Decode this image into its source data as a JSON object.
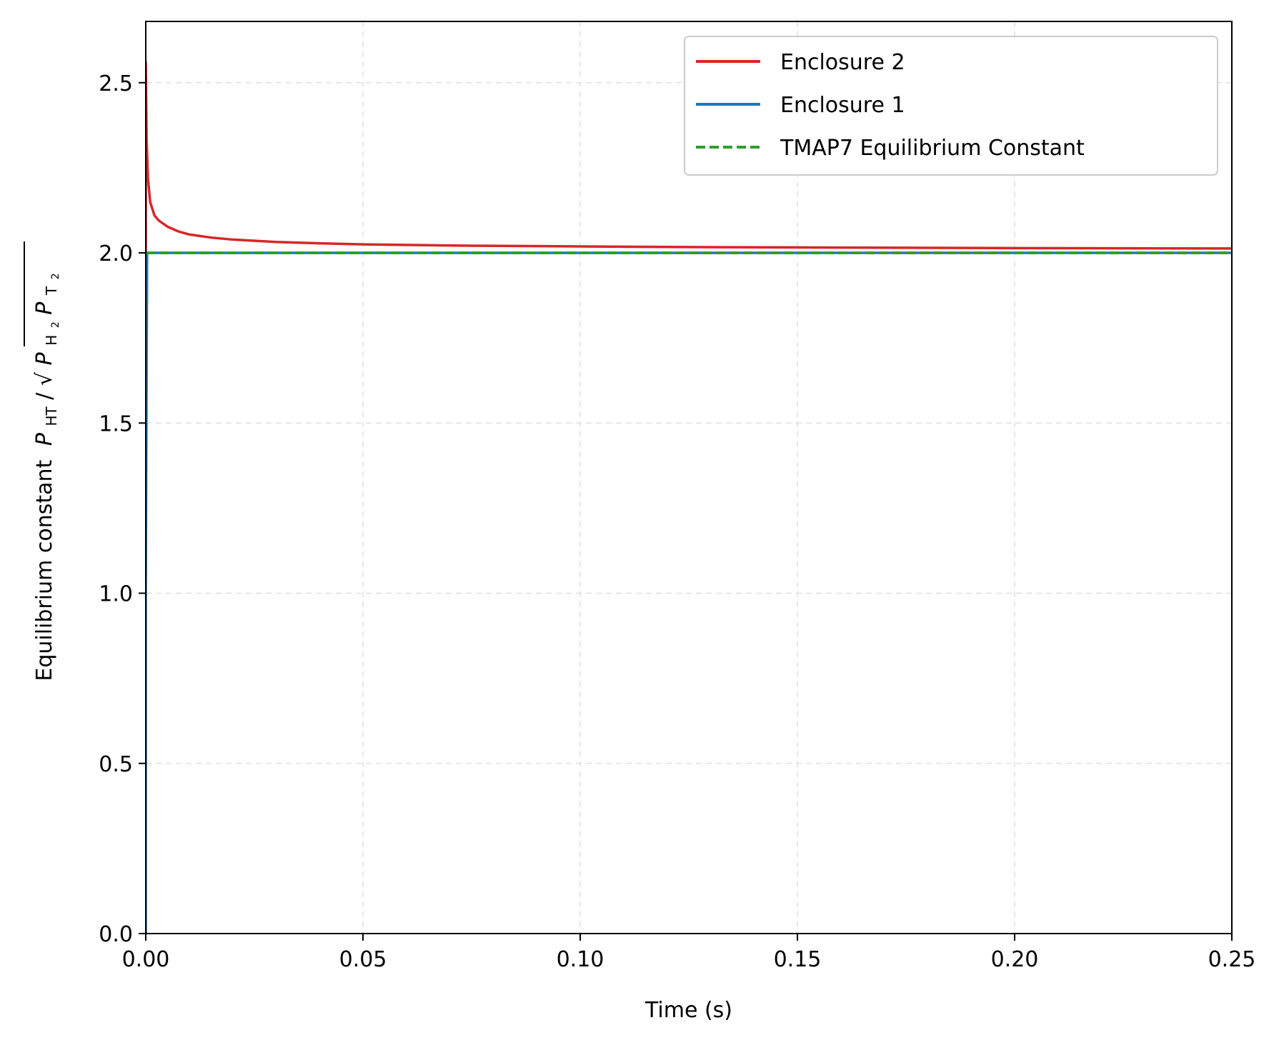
{
  "chart_data": {
    "type": "line",
    "xlabel": "Time (s)",
    "ylabel": "Equilibrium constant",
    "ylabel_math": {
      "numerator_symbol": "P",
      "numerator_subscript": "HT",
      "slash": "/",
      "denominator_symbol_1": "P",
      "denominator_subscript_1": "H",
      "denominator_subscript_1_index": "2",
      "denominator_symbol_2": "P",
      "denominator_subscript_2": "T",
      "denominator_subscript_2_index": "2"
    },
    "xlim": [
      0,
      0.25
    ],
    "ylim": [
      0,
      2.68
    ],
    "x_ticks": [
      0.0,
      0.05,
      0.1,
      0.15,
      0.2,
      0.25
    ],
    "x_tick_labels": [
      "0.00",
      "0.05",
      "0.10",
      "0.15",
      "0.20",
      "0.25"
    ],
    "y_ticks": [
      0.0,
      0.5,
      1.0,
      1.5,
      2.0,
      2.5
    ],
    "y_tick_labels": [
      "0.0",
      "0.5",
      "1.0",
      "1.5",
      "2.0",
      "2.5"
    ],
    "grid": true,
    "legend_position": "top-right",
    "series": [
      {
        "name": "Enclosure 2",
        "color": "#d62728",
        "style": "solid",
        "x": [
          0.0,
          0.0,
          0.0002,
          0.0005,
          0.001,
          0.002,
          0.003,
          0.005,
          0.0075,
          0.01,
          0.015,
          0.02,
          0.03,
          0.04,
          0.05,
          0.075,
          0.1,
          0.125,
          0.15,
          0.175,
          0.2,
          0.225,
          0.25
        ],
        "y": [
          2.0,
          2.56,
          2.33,
          2.22,
          2.15,
          2.11,
          2.095,
          2.077,
          2.063,
          2.054,
          2.045,
          2.039,
          2.032,
          2.028,
          2.025,
          2.021,
          2.019,
          2.017,
          2.016,
          2.015,
          2.014,
          2.0135,
          2.013
        ]
      },
      {
        "name": "Enclosure 1",
        "color": "#1f77b4",
        "style": "solid",
        "x": [
          0.0,
          0.0,
          0.0003,
          0.25
        ],
        "y": [
          0.0,
          1.0,
          2.0,
          2.0
        ]
      },
      {
        "name": "TMAP7 Equilibrium Constant",
        "color": "#2ca02c",
        "style": "dashed",
        "x": [
          0.0,
          0.25
        ],
        "y": [
          2.0,
          2.0
        ]
      }
    ]
  }
}
